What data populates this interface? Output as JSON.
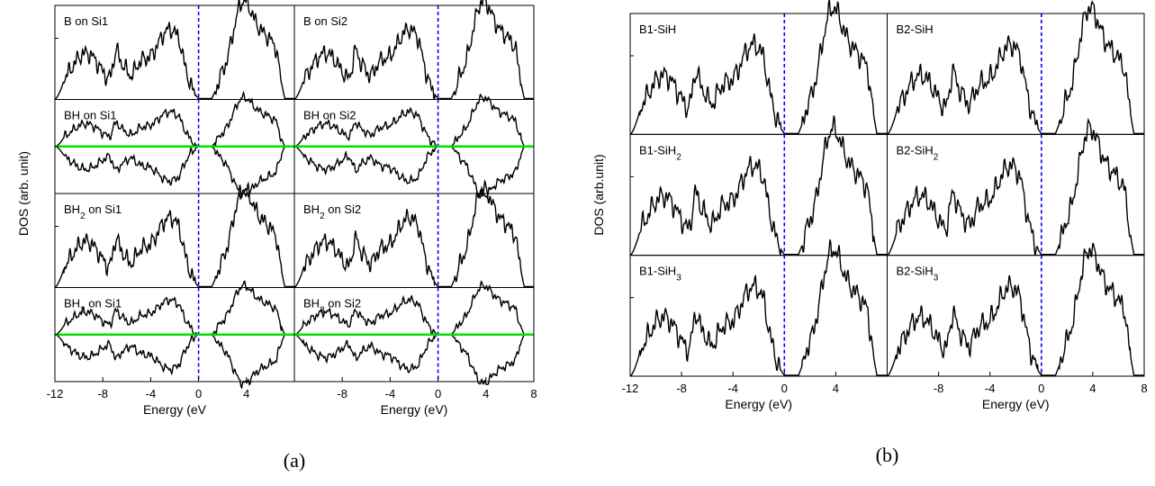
{
  "chart_data": [
    {
      "id": "a",
      "caption": "(a)",
      "type": "line",
      "xlabel": "Energy (eV",
      "xlabel_right": "Energy (eV)",
      "ylabel": "DOS (arb. unit)",
      "xlim": [
        -12,
        8
      ],
      "x_ticks_left": [
        "-12",
        "-8",
        "-4",
        "0",
        "4"
      ],
      "x_ticks_right": [
        "-8",
        "-4",
        "0",
        "4",
        "8"
      ],
      "fermi_level": 0,
      "colors": {
        "dos": "#000000",
        "zero_line": "#00e000",
        "fermi": "#0000ff"
      },
      "panels": [
        {
          "row": 0,
          "col": 0,
          "label": "B  on Si1",
          "spin_polarized": false
        },
        {
          "row": 0,
          "col": 1,
          "label": "B  on Si2",
          "spin_polarized": false
        },
        {
          "row": 1,
          "col": 0,
          "label": "BH on Si1",
          "spin_polarized": true
        },
        {
          "row": 1,
          "col": 1,
          "label": "BH  on Si2",
          "spin_polarized": true
        },
        {
          "row": 2,
          "col": 0,
          "label": "BH",
          "sub": "2",
          "label_tail": " on Si1",
          "spin_polarized": false
        },
        {
          "row": 2,
          "col": 1,
          "label": "BH",
          "sub": "2",
          "label_tail": " on Si2",
          "spin_polarized": false
        },
        {
          "row": 3,
          "col": 0,
          "label": "BH",
          "sub": "3",
          "label_tail": " on Si1",
          "spin_polarized": true
        },
        {
          "row": 3,
          "col": 1,
          "label": "BH",
          "sub": "3",
          "label_tail": " on Si2",
          "spin_polarized": true
        }
      ]
    },
    {
      "id": "b",
      "caption": "(b)",
      "type": "line",
      "xlabel": "Energy (eV)",
      "ylabel": "DOS (arb.unit)",
      "xlim": [
        -12,
        8
      ],
      "x_ticks_left": [
        "-12",
        "-8",
        "-4",
        "0",
        "4"
      ],
      "x_ticks_right": [
        "-8",
        "-4",
        "0",
        "4",
        "8"
      ],
      "fermi_level": 0,
      "colors": {
        "dos": "#000000",
        "fermi": "#0000ff"
      },
      "panels": [
        {
          "row": 0,
          "col": 0,
          "label": "B1-SiH",
          "spin_polarized": false
        },
        {
          "row": 0,
          "col": 1,
          "label": "B2-SiH",
          "spin_polarized": false
        },
        {
          "row": 1,
          "col": 0,
          "label": "B1-SiH",
          "sub": "2",
          "spin_polarized": false
        },
        {
          "row": 1,
          "col": 1,
          "label": "B2-SiH",
          "sub": "2",
          "spin_polarized": false
        },
        {
          "row": 2,
          "col": 0,
          "label": "B1-SiH",
          "sub": "3",
          "spin_polarized": false
        },
        {
          "row": 2,
          "col": 1,
          "label": "B2-SiH",
          "sub": "3",
          "spin_polarized": false
        }
      ]
    }
  ]
}
